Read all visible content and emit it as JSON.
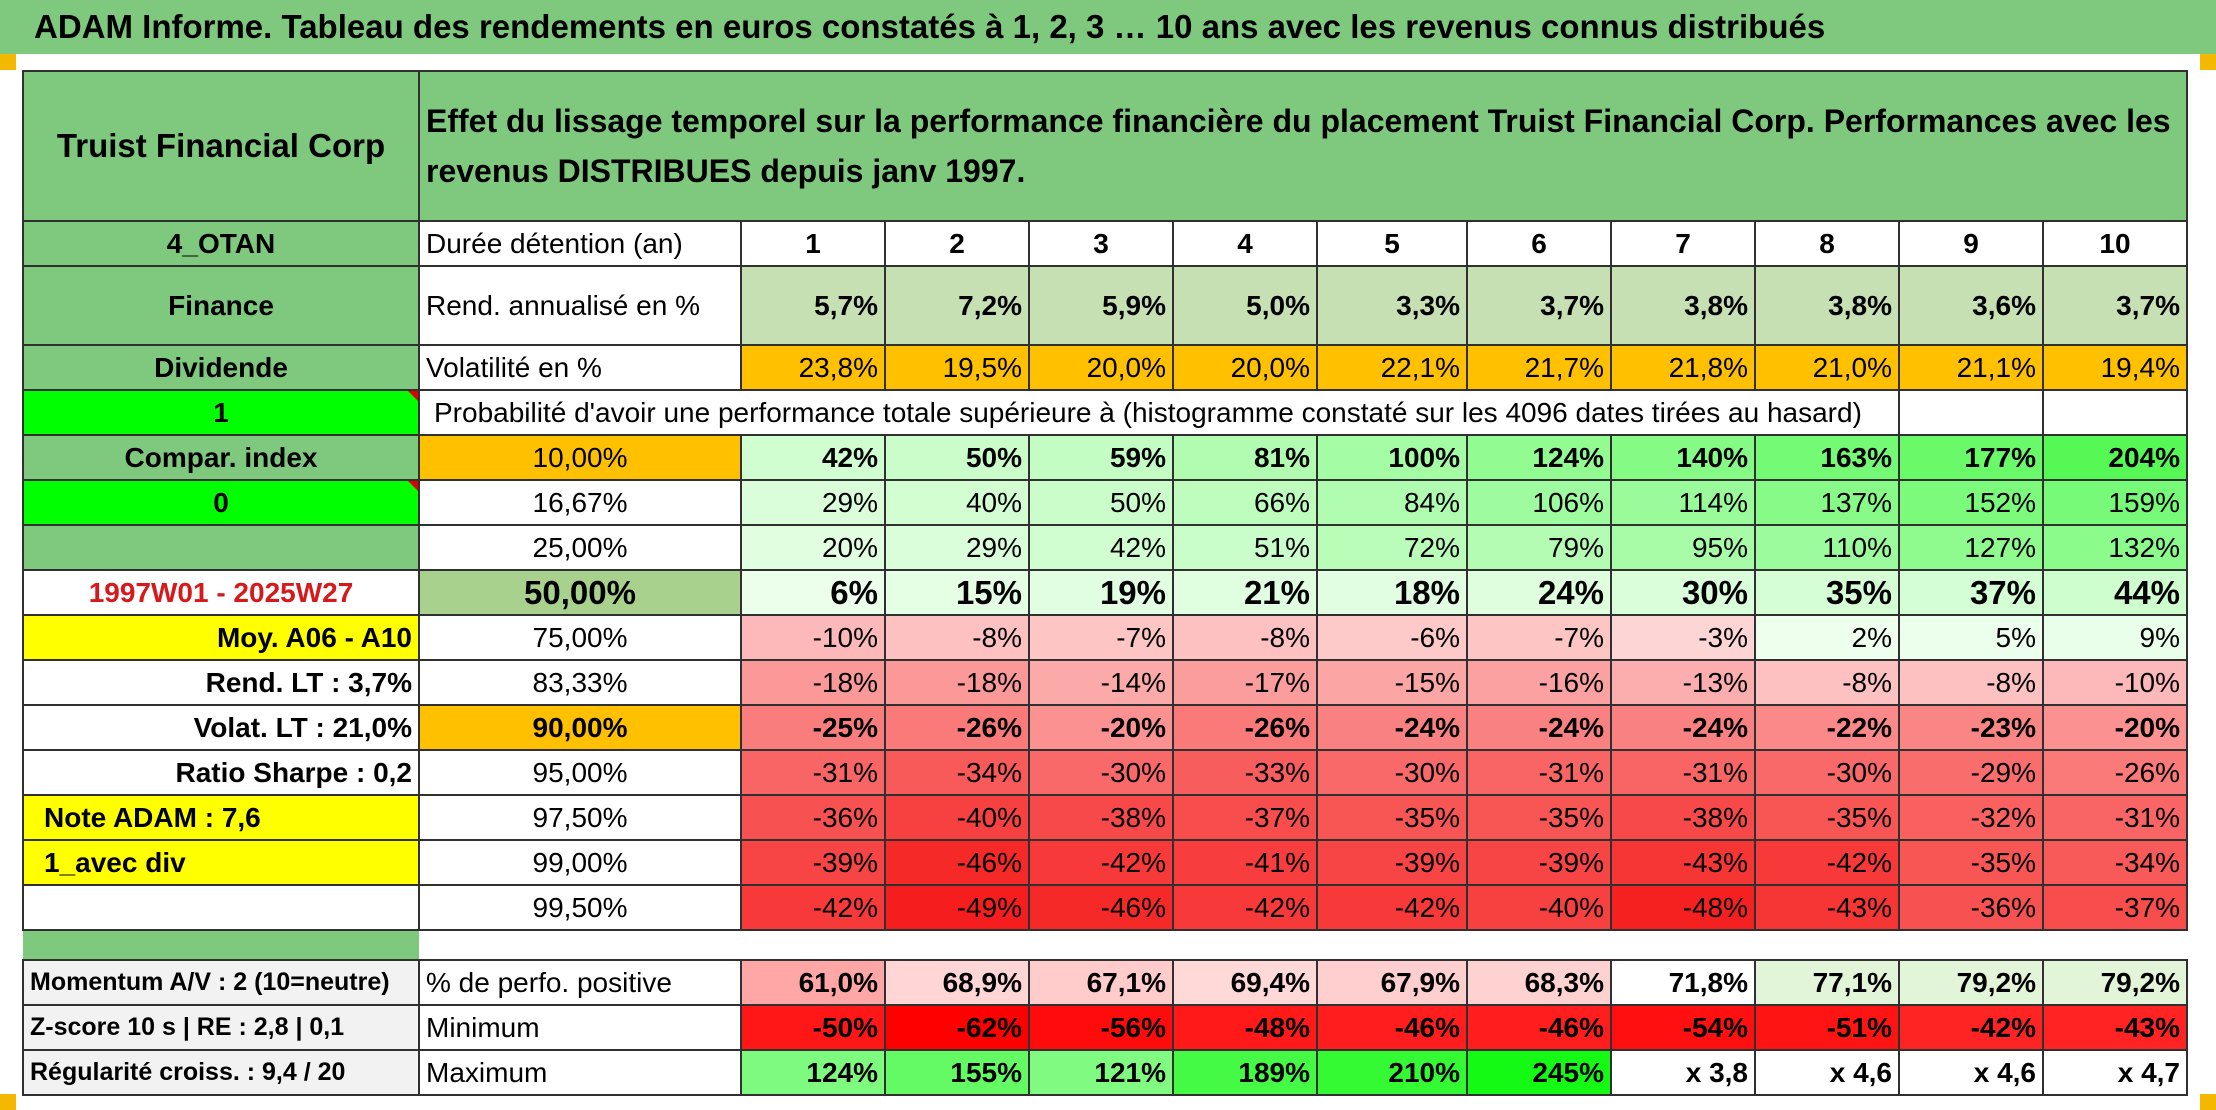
{
  "page_title": "ADAM Informe. Tableau des rendements en euros constatés à 1, 2, 3 … 10 ans avec les revenus connus distribués",
  "company": "Truist Financial Corp",
  "description": "Effet du lissage temporel sur la performance financière du placement Truist Financial Corp. Performances avec les revenus DISTRIBUES depuis janv 1997.",
  "left_labels": {
    "otan": "4_OTAN",
    "sector": "Finance",
    "dividend": "Dividende",
    "one": "1",
    "compar_index": "Compar. index",
    "zero": "0",
    "period": "1997W01 - 2025W27",
    "moy": "Moy. A06 - A10",
    "rend_lt": "Rend. LT :   3,7%",
    "volat_lt": "Volat. LT :   21,0%",
    "sharpe": "Ratio Sharpe :    0,2",
    "note": "Note ADAM : 7,6",
    "avec_div": "1_avec div",
    "momentum": "Momentum A/V : 2 (10=neutre)",
    "zscore": "Z-score 10 s | RE : 2,8 | 0,1",
    "regularite": "Régularité croiss. : 9,4 / 20"
  },
  "durations_label": "Durée détention (an)",
  "durations": [
    "1",
    "2",
    "3",
    "4",
    "5",
    "6",
    "7",
    "8",
    "9",
    "10"
  ],
  "rend_label": "Rend. annualisé en %",
  "rend": [
    "5,7%",
    "7,2%",
    "5,9%",
    "5,0%",
    "3,3%",
    "3,7%",
    "3,8%",
    "3,8%",
    "3,6%",
    "3,7%"
  ],
  "vol_label": "Volatilité en %",
  "vol": [
    "23,8%",
    "19,5%",
    "20,0%",
    "20,0%",
    "22,1%",
    "21,7%",
    "21,8%",
    "21,0%",
    "21,1%",
    "19,4%"
  ],
  "prob_label": "Probabilité d'avoir une performance totale supérieure à (histogramme constaté sur les 4096 dates tirées au hasard)",
  "prob_rows": [
    {
      "pct": "10,00%",
      "vals": [
        "42%",
        "50%",
        "59%",
        "81%",
        "100%",
        "124%",
        "140%",
        "163%",
        "177%",
        "204%"
      ]
    },
    {
      "pct": "16,67%",
      "vals": [
        "29%",
        "40%",
        "50%",
        "66%",
        "84%",
        "106%",
        "114%",
        "137%",
        "152%",
        "159%"
      ]
    },
    {
      "pct": "25,00%",
      "vals": [
        "20%",
        "29%",
        "42%",
        "51%",
        "72%",
        "79%",
        "95%",
        "110%",
        "127%",
        "132%"
      ]
    },
    {
      "pct": "50,00%",
      "vals": [
        "6%",
        "15%",
        "19%",
        "21%",
        "18%",
        "24%",
        "30%",
        "35%",
        "37%",
        "44%"
      ]
    },
    {
      "pct": "75,00%",
      "vals": [
        "-10%",
        "-8%",
        "-7%",
        "-8%",
        "-6%",
        "-7%",
        "-3%",
        "2%",
        "5%",
        "9%"
      ]
    },
    {
      "pct": "83,33%",
      "vals": [
        "-18%",
        "-18%",
        "-14%",
        "-17%",
        "-15%",
        "-16%",
        "-13%",
        "-8%",
        "-8%",
        "-10%"
      ]
    },
    {
      "pct": "90,00%",
      "vals": [
        "-25%",
        "-26%",
        "-20%",
        "-26%",
        "-24%",
        "-24%",
        "-24%",
        "-22%",
        "-23%",
        "-20%"
      ]
    },
    {
      "pct": "95,00%",
      "vals": [
        "-31%",
        "-34%",
        "-30%",
        "-33%",
        "-30%",
        "-31%",
        "-31%",
        "-30%",
        "-29%",
        "-26%"
      ]
    },
    {
      "pct": "97,50%",
      "vals": [
        "-36%",
        "-40%",
        "-38%",
        "-37%",
        "-35%",
        "-35%",
        "-38%",
        "-35%",
        "-32%",
        "-31%"
      ]
    },
    {
      "pct": "99,00%",
      "vals": [
        "-39%",
        "-46%",
        "-42%",
        "-41%",
        "-39%",
        "-39%",
        "-43%",
        "-42%",
        "-35%",
        "-34%"
      ]
    },
    {
      "pct": "99,50%",
      "vals": [
        "-42%",
        "-49%",
        "-46%",
        "-42%",
        "-42%",
        "-40%",
        "-48%",
        "-43%",
        "-36%",
        "-37%"
      ]
    }
  ],
  "positive_label": "% de perfo. positive",
  "positive": [
    "61,0%",
    "68,9%",
    "67,1%",
    "69,4%",
    "67,9%",
    "68,3%",
    "71,8%",
    "77,1%",
    "79,2%",
    "79,2%"
  ],
  "min_label": "Minimum",
  "minimum": [
    "-50%",
    "-62%",
    "-56%",
    "-48%",
    "-46%",
    "-46%",
    "-54%",
    "-51%",
    "-42%",
    "-43%"
  ],
  "max_label": "Maximum",
  "maximum": [
    "124%",
    "155%",
    "121%",
    "189%",
    "210%",
    "245%",
    "x 3,8",
    "x 4,6",
    "x 4,6",
    "x 4,7"
  ],
  "colors": {
    "header_green": "#7fc97f",
    "bright_green": "#00ff00",
    "orange": "#ffc000",
    "yellow": "#ffff00",
    "red_text": "#d7191c",
    "light_green_rend": "#c6e0b4"
  }
}
